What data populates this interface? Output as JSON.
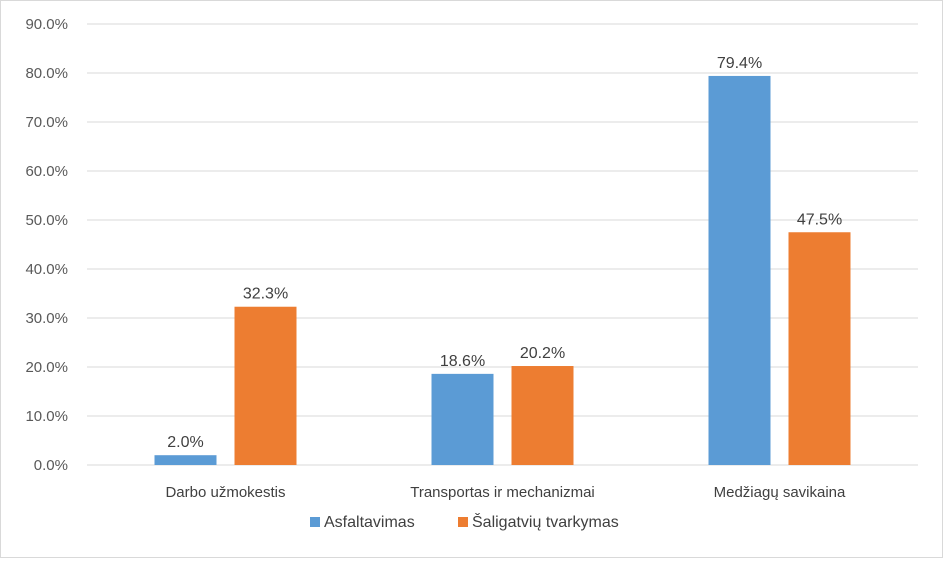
{
  "chart_data": {
    "type": "bar",
    "categories": [
      "Darbo užmokestis",
      "Transportas ir mechanizmai",
      "Medžiagų savikaina"
    ],
    "series": [
      {
        "name": "Asfaltavimas",
        "color": "#5b9bd5",
        "values": [
          2.0,
          18.6,
          79.4
        ],
        "labels": [
          "2.0%",
          "18.6%",
          "79.4%"
        ]
      },
      {
        "name": "Šaligatvių tvarkymas",
        "color": "#ed7d31",
        "values": [
          32.3,
          20.2,
          47.5
        ],
        "labels": [
          "32.3%",
          "20.2%",
          "47.5%"
        ]
      }
    ],
    "ylim": [
      0,
      90
    ],
    "yticks": [
      0,
      10,
      20,
      30,
      40,
      50,
      60,
      70,
      80,
      90
    ],
    "ytick_labels": [
      "0.0%",
      "10.0%",
      "20.0%",
      "30.0%",
      "40.0%",
      "50.0%",
      "60.0%",
      "70.0%",
      "80.0%",
      "90.0%"
    ],
    "grid": true,
    "legend_position": "bottom",
    "gridline_color": "#d9d9d9"
  }
}
